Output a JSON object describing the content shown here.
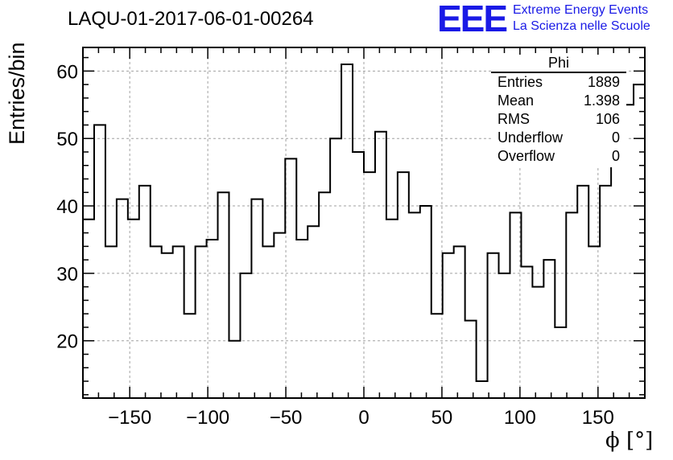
{
  "header": {
    "run_title": "LAQU-01-2017-06-01-00264",
    "logo_text": "EEE",
    "logo_line1": "Extreme Energy Events",
    "logo_line2": "La Scienza nelle Scuole"
  },
  "stats": {
    "title": "Phi",
    "rows": [
      {
        "label": "Entries",
        "value": "1889"
      },
      {
        "label": "Mean",
        "value": "1.398"
      },
      {
        "label": "RMS",
        "value": "106"
      },
      {
        "label": "Underflow",
        "value": "0"
      },
      {
        "label": "Overflow",
        "value": "0"
      }
    ]
  },
  "colors": {
    "logo": "#1a1ae6",
    "line": "#000000",
    "grid": "#a0a0a0"
  },
  "chart_data": {
    "type": "bar",
    "histogram_style": "step",
    "title": "",
    "xlabel": "ϕ [°]",
    "ylabel": "Entries/bin",
    "xlim": [
      -180,
      180
    ],
    "ylim": [
      11.5,
      63.5
    ],
    "bin_width": 7.2,
    "x_ticks": [
      -150,
      -100,
      -50,
      0,
      50,
      100,
      150
    ],
    "x_tick_labels": [
      "−150",
      "−100",
      "−50",
      "0",
      "50",
      "100",
      "150"
    ],
    "y_ticks": [
      20,
      30,
      40,
      50,
      60
    ],
    "y_tick_labels": [
      "20",
      "30",
      "40",
      "50",
      "60"
    ],
    "grid": true,
    "values": [
      38,
      52,
      34,
      41,
      38,
      43,
      34,
      33,
      34,
      24,
      34,
      35,
      42,
      20,
      30,
      41,
      34,
      36,
      47,
      35,
      37,
      42,
      50,
      61,
      48,
      45,
      51,
      38,
      45,
      39,
      40,
      24,
      33,
      34,
      23,
      14,
      33,
      30,
      39,
      31,
      28,
      32,
      22,
      39,
      43,
      34,
      43,
      53,
      55,
      58
    ]
  }
}
